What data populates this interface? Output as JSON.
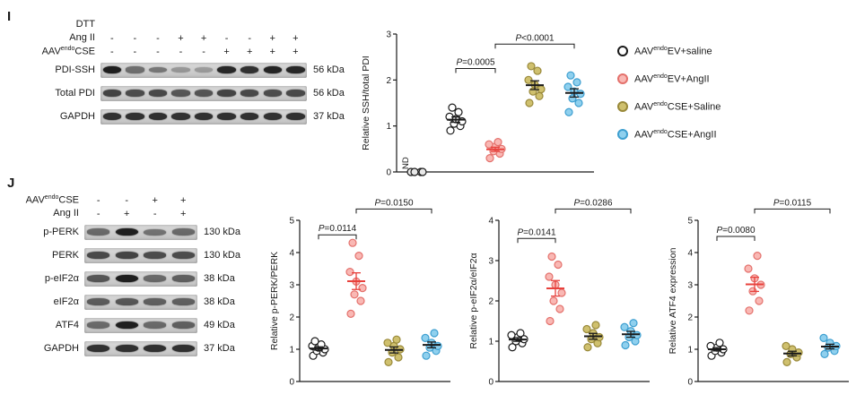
{
  "panel_I": {
    "label": "I",
    "blot": {
      "conditions": [
        {
          "label": {
            "text": "DTT"
          },
          "symbols": [
            "",
            "",
            "",
            "",
            "",
            "",
            "",
            "",
            ""
          ]
        },
        {
          "label": {
            "text": "Ang II"
          },
          "symbols": [
            "-",
            "-",
            "-",
            "+",
            "+",
            "-",
            "-",
            "+",
            "+"
          ]
        },
        {
          "label": {
            "prefix": "AAV",
            "sup": "endo",
            "rest": "CSE"
          },
          "symbols": [
            "-",
            "-",
            "-",
            "-",
            "-",
            "+",
            "+",
            "+",
            "+"
          ]
        }
      ],
      "rows": [
        {
          "label": {
            "text": "PDI-SSH"
          },
          "kda": "56 kDa",
          "bands": [
            0.95,
            0.52,
            0.48,
            0.3,
            0.28,
            0.9,
            0.85,
            0.92,
            0.9
          ]
        },
        {
          "label": {
            "text": "Total PDI"
          },
          "kda": "56 kDa",
          "bands": [
            0.75,
            0.7,
            0.72,
            0.65,
            0.66,
            0.75,
            0.72,
            0.7,
            0.72
          ]
        },
        {
          "label": {
            "text": "GAPDH"
          },
          "kda": "37 kDa",
          "bands": [
            0.85,
            0.85,
            0.85,
            0.85,
            0.85,
            0.85,
            0.85,
            0.85,
            0.85
          ]
        }
      ]
    },
    "legend": [
      {
        "prefix": "AAV",
        "sup": "endo",
        "rest": "EV+saline",
        "fill": "#ffffff",
        "stroke": "#1a1a1a"
      },
      {
        "prefix": "AAV",
        "sup": "endo",
        "rest": "EV+AngII",
        "fill": "#f9b8b4",
        "stroke": "#e4716c"
      },
      {
        "prefix": "AAV",
        "sup": "endo",
        "rest": "CSE+Saline",
        "fill": "#cfc06e",
        "stroke": "#99893a"
      },
      {
        "prefix": "AAV",
        "sup": "endo",
        "rest": "CSE+AngII",
        "fill": "#8fd0ee",
        "stroke": "#3e9fd0"
      }
    ]
  },
  "panel_J": {
    "label": "J",
    "blot": {
      "conditions": [
        {
          "label": {
            "prefix": "AAV",
            "sup": "endo",
            "rest": "CSE"
          },
          "symbols": [
            "-",
            "-",
            "+",
            "+"
          ]
        },
        {
          "label": {
            "text": "Ang II"
          },
          "symbols": [
            "-",
            "+",
            "-",
            "+"
          ]
        }
      ],
      "rows": [
        {
          "label": {
            "text": "p-PERK"
          },
          "kda": "130 kDa",
          "bands": [
            0.55,
            0.95,
            0.5,
            0.55
          ]
        },
        {
          "label": {
            "text": "PERK"
          },
          "kda": "130 kDa",
          "bands": [
            0.72,
            0.75,
            0.7,
            0.7
          ]
        },
        {
          "label": {
            "text": "p-eIF2α"
          },
          "kda": "38 kDa",
          "bands": [
            0.65,
            0.95,
            0.55,
            0.6
          ]
        },
        {
          "label": {
            "text": "eIF2α"
          },
          "kda": "38 kDa",
          "bands": [
            0.62,
            0.65,
            0.6,
            0.6
          ]
        },
        {
          "label": {
            "text": "ATF4"
          },
          "kda": "49 kDa",
          "bands": [
            0.55,
            0.95,
            0.55,
            0.6
          ]
        },
        {
          "label": {
            "text": "GAPDH"
          },
          "kda": "37 kDa",
          "bands": [
            0.85,
            0.85,
            0.85,
            0.85
          ]
        }
      ]
    }
  },
  "chart_data": [
    {
      "id": "chart_I",
      "type": "scatter",
      "title": "",
      "ylabel": "Relative SSH/total PDI",
      "ylim": [
        0,
        3
      ],
      "yticks": [
        0,
        1,
        2,
        3
      ],
      "groups": [
        {
          "name": "ND",
          "nd_label": "ND",
          "fill": "#e8e8e8",
          "stroke": "#1a1a1a",
          "values": [
            0,
            0,
            0,
            0
          ]
        },
        {
          "name": "AAVendoEV+saline",
          "fill": "#ffffff",
          "stroke": "#1a1a1a",
          "mean_color": "#1a1a1a",
          "values": [
            0.9,
            1.0,
            1.05,
            1.1,
            1.15,
            1.2,
            1.3,
            1.4
          ]
        },
        {
          "name": "AAVendoEV+AngII",
          "fill": "#f9b8b4",
          "stroke": "#e4716c",
          "mean_color": "#e8413c",
          "values": [
            0.3,
            0.4,
            0.45,
            0.5,
            0.55,
            0.6,
            0.65
          ]
        },
        {
          "name": "AAVendoCSE+Saline",
          "fill": "#cfc06e",
          "stroke": "#99893a",
          "mean_color": "#1a1a1a",
          "values": [
            1.5,
            1.65,
            1.75,
            1.8,
            1.9,
            2.0,
            2.2,
            2.3
          ]
        },
        {
          "name": "AAVendoCSE+AngII",
          "fill": "#8fd0ee",
          "stroke": "#3e9fd0",
          "mean_color": "#1a1a1a",
          "values": [
            1.3,
            1.5,
            1.6,
            1.7,
            1.75,
            1.85,
            1.95,
            2.1
          ]
        }
      ],
      "brackets": [
        {
          "from": 1,
          "to": 2,
          "y": 2.25,
          "label": "P=0.0005"
        },
        {
          "from": 2,
          "to": 4,
          "y": 2.78,
          "label": "P<0.0001"
        }
      ]
    },
    {
      "id": "chart_J1",
      "type": "scatter",
      "title": "",
      "ylabel": "Relative p-PERK/PERK",
      "ylim": [
        0,
        5
      ],
      "yticks": [
        0,
        1,
        2,
        3,
        4,
        5
      ],
      "groups": [
        {
          "name": "AAVendoEV+saline",
          "fill": "#ffffff",
          "stroke": "#1a1a1a",
          "mean_color": "#1a1a1a",
          "values": [
            0.8,
            0.9,
            0.95,
            1.0,
            1.05,
            1.1,
            1.15,
            1.25
          ]
        },
        {
          "name": "AAVendoEV+AngII",
          "fill": "#f9b8b4",
          "stroke": "#e4716c",
          "mean_color": "#e8413c",
          "values": [
            2.1,
            2.5,
            2.7,
            2.9,
            3.1,
            3.4,
            3.9,
            4.3
          ]
        },
        {
          "name": "AAVendoCSE+Saline",
          "fill": "#cfc06e",
          "stroke": "#99893a",
          "mean_color": "#1a1a1a",
          "values": [
            0.6,
            0.75,
            0.9,
            1.0,
            1.1,
            1.2,
            1.3
          ]
        },
        {
          "name": "AAVendoCSE+AngII",
          "fill": "#8fd0ee",
          "stroke": "#3e9fd0",
          "mean_color": "#1a1a1a",
          "values": [
            0.8,
            0.95,
            1.05,
            1.1,
            1.2,
            1.35,
            1.5
          ]
        }
      ],
      "brackets": [
        {
          "from": 0,
          "to": 1,
          "y": 4.55,
          "label": "P=0.0114"
        },
        {
          "from": 1,
          "to": 3,
          "y": 5.35,
          "label": "P=0.0150"
        }
      ]
    },
    {
      "id": "chart_J2",
      "type": "scatter",
      "title": "",
      "ylabel": "Relative p-eIF2α/eIF2α",
      "ylim": [
        0,
        4
      ],
      "yticks": [
        0,
        1,
        2,
        3,
        4
      ],
      "groups": [
        {
          "name": "AAVendoEV+saline",
          "fill": "#ffffff",
          "stroke": "#1a1a1a",
          "mean_color": "#1a1a1a",
          "values": [
            0.85,
            0.95,
            1.0,
            1.05,
            1.1,
            1.15,
            1.2
          ]
        },
        {
          "name": "AAVendoEV+AngII",
          "fill": "#f9b8b4",
          "stroke": "#e4716c",
          "mean_color": "#e8413c",
          "values": [
            1.5,
            1.8,
            2.0,
            2.2,
            2.4,
            2.6,
            2.9,
            3.1
          ]
        },
        {
          "name": "AAVendoCSE+Saline",
          "fill": "#cfc06e",
          "stroke": "#99893a",
          "mean_color": "#1a1a1a",
          "values": [
            0.85,
            0.95,
            1.05,
            1.1,
            1.2,
            1.3,
            1.4
          ]
        },
        {
          "name": "AAVendoCSE+AngII",
          "fill": "#8fd0ee",
          "stroke": "#3e9fd0",
          "mean_color": "#1a1a1a",
          "values": [
            0.9,
            1.0,
            1.1,
            1.15,
            1.25,
            1.35,
            1.45
          ]
        }
      ],
      "brackets": [
        {
          "from": 0,
          "to": 1,
          "y": 3.55,
          "label": "P=0.0141"
        },
        {
          "from": 1,
          "to": 3,
          "y": 4.28,
          "label": "P=0.0286"
        }
      ]
    },
    {
      "id": "chart_J3",
      "type": "scatter",
      "title": "",
      "ylabel": "Relative ATF4 expression",
      "ylim": [
        0,
        5
      ],
      "yticks": [
        0,
        1,
        2,
        3,
        4,
        5
      ],
      "groups": [
        {
          "name": "AAVendoEV+saline",
          "fill": "#ffffff",
          "stroke": "#1a1a1a",
          "mean_color": "#1a1a1a",
          "values": [
            0.8,
            0.9,
            0.95,
            1.0,
            1.05,
            1.1,
            1.2
          ]
        },
        {
          "name": "AAVendoEV+AngII",
          "fill": "#f9b8b4",
          "stroke": "#e4716c",
          "mean_color": "#e8413c",
          "values": [
            2.2,
            2.5,
            2.8,
            3.0,
            3.2,
            3.5,
            3.9
          ]
        },
        {
          "name": "AAVendoCSE+Saline",
          "fill": "#cfc06e",
          "stroke": "#99893a",
          "mean_color": "#1a1a1a",
          "values": [
            0.6,
            0.75,
            0.85,
            0.9,
            1.0,
            1.1
          ]
        },
        {
          "name": "AAVendoCSE+AngII",
          "fill": "#8fd0ee",
          "stroke": "#3e9fd0",
          "mean_color": "#1a1a1a",
          "values": [
            0.85,
            0.95,
            1.05,
            1.1,
            1.2,
            1.35
          ]
        }
      ],
      "brackets": [
        {
          "from": 0,
          "to": 1,
          "y": 4.5,
          "label": "P=0.0080"
        },
        {
          "from": 1,
          "to": 3,
          "y": 5.35,
          "label": "P=0.0115"
        }
      ]
    }
  ]
}
